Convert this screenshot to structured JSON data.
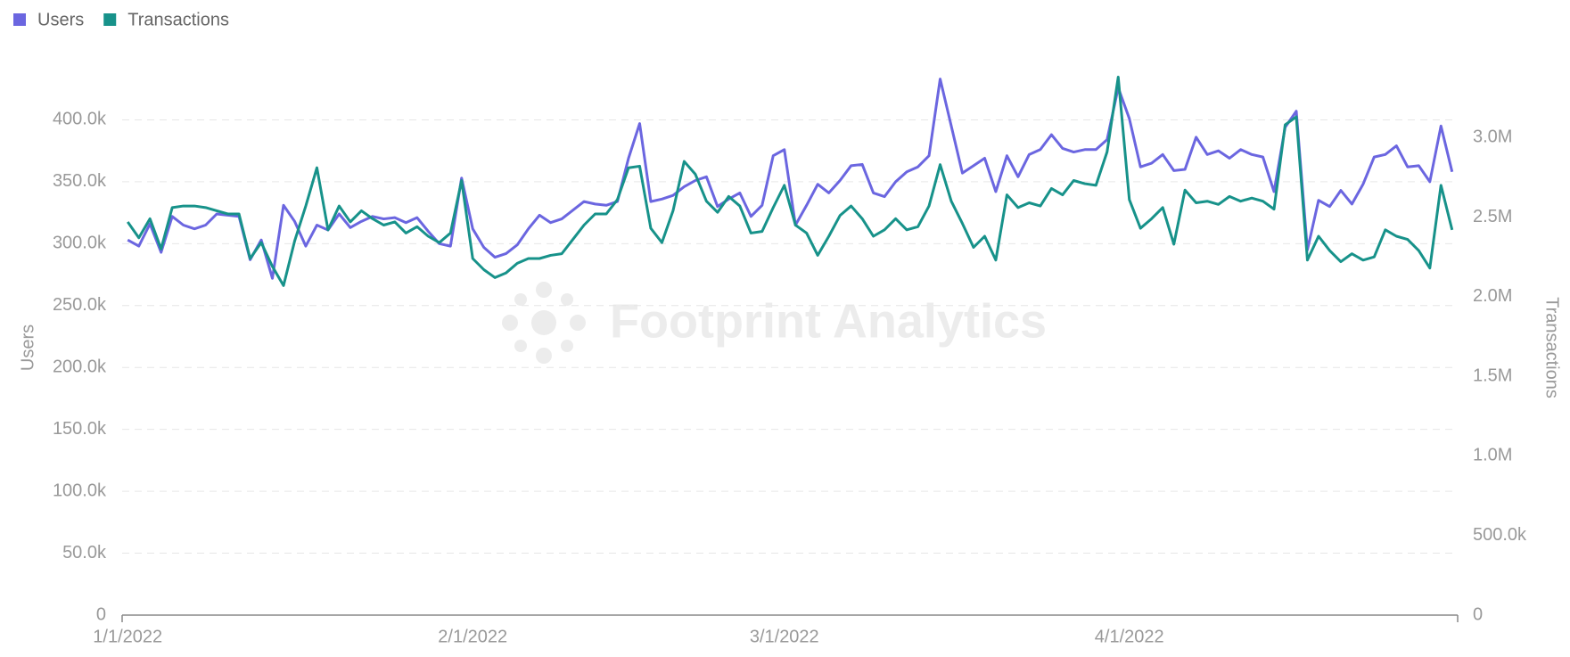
{
  "chart_data": {
    "type": "line",
    "watermark": "Footprint Analytics",
    "y_label": "Users",
    "y2_label": "Transactions",
    "categories": [
      "1/1/2022",
      null,
      null,
      null,
      null,
      null,
      null,
      null,
      null,
      null,
      null,
      null,
      null,
      null,
      null,
      null,
      null,
      null,
      null,
      null,
      null,
      null,
      null,
      null,
      null,
      null,
      null,
      null,
      null,
      null,
      null,
      "2/1/2022",
      null,
      null,
      null,
      null,
      null,
      null,
      null,
      null,
      null,
      null,
      null,
      null,
      null,
      null,
      null,
      null,
      null,
      null,
      null,
      null,
      null,
      null,
      null,
      null,
      null,
      null,
      null,
      "3/1/2022",
      null,
      null,
      null,
      null,
      null,
      null,
      null,
      null,
      null,
      null,
      null,
      null,
      null,
      null,
      null,
      null,
      null,
      null,
      null,
      null,
      null,
      null,
      null,
      null,
      null,
      null,
      null,
      null,
      null,
      null,
      "4/1/2022",
      null,
      null,
      null,
      null,
      null,
      null,
      null,
      null,
      null,
      null,
      null,
      null,
      null,
      null,
      null,
      null,
      null,
      null,
      null,
      null,
      null,
      null,
      null,
      null,
      null,
      null,
      null,
      null,
      null
    ],
    "series": [
      {
        "name": "Users",
        "color": "#6b66e0",
        "axis": "y",
        "values": [
          303000,
          298000,
          316000,
          293000,
          322000,
          315000,
          312000,
          315000,
          324000,
          323000,
          322000,
          287000,
          303000,
          272000,
          331000,
          318000,
          298000,
          315000,
          311000,
          324000,
          313000,
          318000,
          322000,
          320000,
          321000,
          317000,
          321000,
          310000,
          300000,
          298000,
          353000,
          312000,
          297000,
          289000,
          292000,
          299000,
          312000,
          323000,
          317000,
          320000,
          327000,
          334000,
          332000,
          331000,
          334000,
          369000,
          397000,
          334000,
          336000,
          339000,
          346000,
          351000,
          354000,
          330000,
          336000,
          341000,
          322000,
          331000,
          371000,
          376000,
          315000,
          331000,
          348000,
          341000,
          351000,
          363000,
          364000,
          341000,
          338000,
          350000,
          358000,
          362000,
          371000,
          433000,
          395000,
          357000,
          363000,
          369000,
          342000,
          371000,
          354000,
          372000,
          376000,
          388000,
          377000,
          374000,
          376000,
          376000,
          384000,
          426000,
          401000,
          362000,
          365000,
          372000,
          359000,
          360000,
          386000,
          372000,
          375000,
          369000,
          376000,
          372000,
          370000,
          342000,
          394000,
          407000,
          295000,
          335000,
          330000,
          343000,
          332000,
          348000,
          370000,
          372000,
          379000,
          362000,
          363000,
          350000,
          395000,
          358000
        ]
      },
      {
        "name": "Transactions",
        "color": "#17928a",
        "axis": "y2",
        "values": [
          2470000,
          2370000,
          2490000,
          2300000,
          2560000,
          2570000,
          2570000,
          2560000,
          2540000,
          2520000,
          2520000,
          2240000,
          2340000,
          2190000,
          2070000,
          2350000,
          2570000,
          2810000,
          2420000,
          2570000,
          2470000,
          2540000,
          2490000,
          2450000,
          2470000,
          2400000,
          2440000,
          2380000,
          2340000,
          2400000,
          2730000,
          2240000,
          2170000,
          2120000,
          2150000,
          2210000,
          2240000,
          2240000,
          2260000,
          2270000,
          2360000,
          2450000,
          2520000,
          2520000,
          2610000,
          2810000,
          2820000,
          2430000,
          2340000,
          2540000,
          2850000,
          2770000,
          2600000,
          2530000,
          2630000,
          2570000,
          2400000,
          2410000,
          2560000,
          2700000,
          2450000,
          2400000,
          2260000,
          2380000,
          2510000,
          2570000,
          2490000,
          2380000,
          2420000,
          2490000,
          2420000,
          2440000,
          2570000,
          2830000,
          2600000,
          2460000,
          2310000,
          2380000,
          2230000,
          2640000,
          2560000,
          2590000,
          2570000,
          2680000,
          2640000,
          2730000,
          2710000,
          2700000,
          2910000,
          3380000,
          2610000,
          2430000,
          2490000,
          2560000,
          2330000,
          2670000,
          2590000,
          2600000,
          2580000,
          2630000,
          2600000,
          2620000,
          2600000,
          2550000,
          3080000,
          3130000,
          2230000,
          2380000,
          2290000,
          2220000,
          2270000,
          2230000,
          2250000,
          2420000,
          2380000,
          2360000,
          2290000,
          2180000,
          2700000,
          2420000
        ]
      }
    ],
    "ylim": [
      0,
      450000
    ],
    "yticks": [
      0,
      {
        "value": 50000,
        "label": "50.0k"
      },
      {
        "value": 100000,
        "label": "100.0k"
      },
      {
        "value": 150000,
        "label": "150.0k"
      },
      {
        "value": 200000,
        "label": "200.0k"
      },
      {
        "value": 250000,
        "label": "250.0k"
      },
      {
        "value": 300000,
        "label": "300.0k"
      },
      {
        "value": 350000,
        "label": "350.0k"
      },
      {
        "value": 400000,
        "label": "400.0k"
      }
    ],
    "y2lim": [
      0,
      3500000
    ],
    "y2ticks": [
      0,
      {
        "value": 500000,
        "label": "500.0k"
      },
      {
        "value": 1000000,
        "label": "1.0M"
      },
      {
        "value": 1500000,
        "label": "1.5M"
      },
      {
        "value": 2000000,
        "label": "2.0M"
      },
      {
        "value": 2500000,
        "label": "2.5M"
      },
      {
        "value": 3000000,
        "label": "3.0M"
      }
    ],
    "grid": true,
    "legend": "top-left"
  }
}
